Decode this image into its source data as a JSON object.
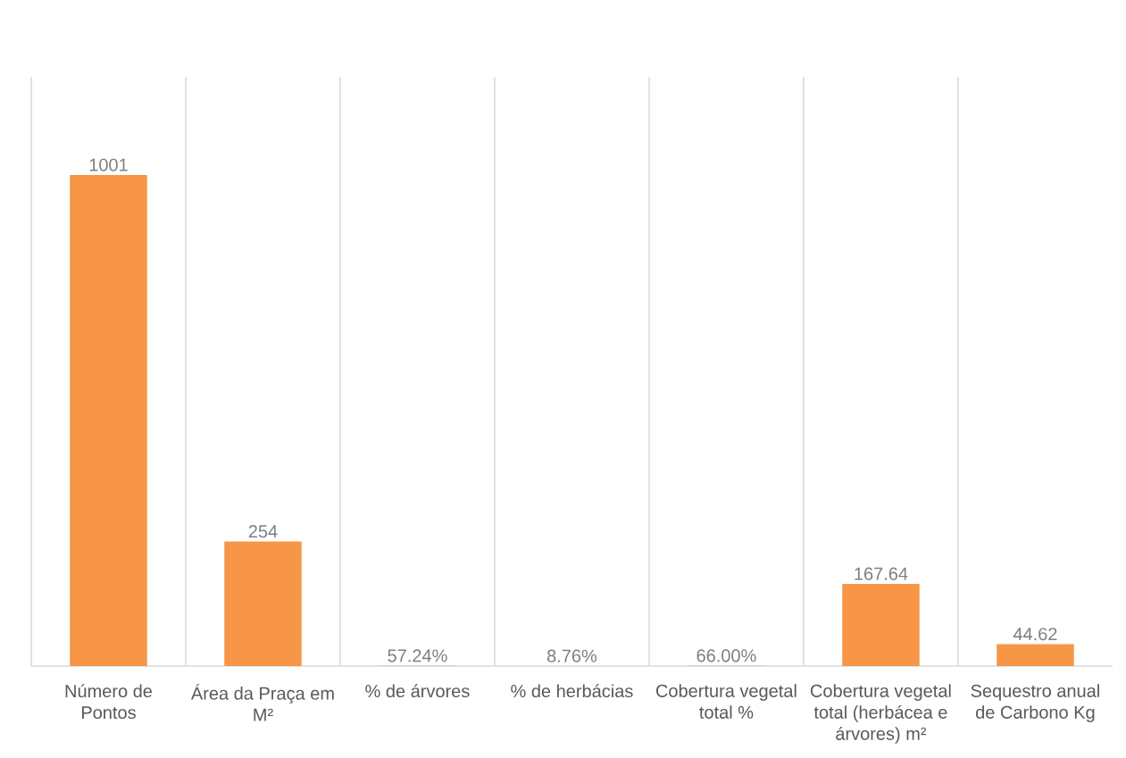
{
  "chart_data": {
    "type": "bar",
    "categories": [
      "Número de Pontos",
      "Área da Praça em M²",
      "% de árvores",
      "% de herbácias",
      "Cobertura vegetal total %",
      "Cobertura vegetal total (herbácea e árvores) m²",
      "Sequestro anual de Carbono Kg"
    ],
    "values": [
      1001,
      254,
      0.5724,
      0.0876,
      0.66,
      167.64,
      44.62
    ],
    "value_labels": [
      "1001",
      "254",
      "57.24%",
      "8.76%",
      "66.00%",
      "167.64",
      "44.62"
    ],
    "color": "#f79646",
    "grid": "x"
  }
}
